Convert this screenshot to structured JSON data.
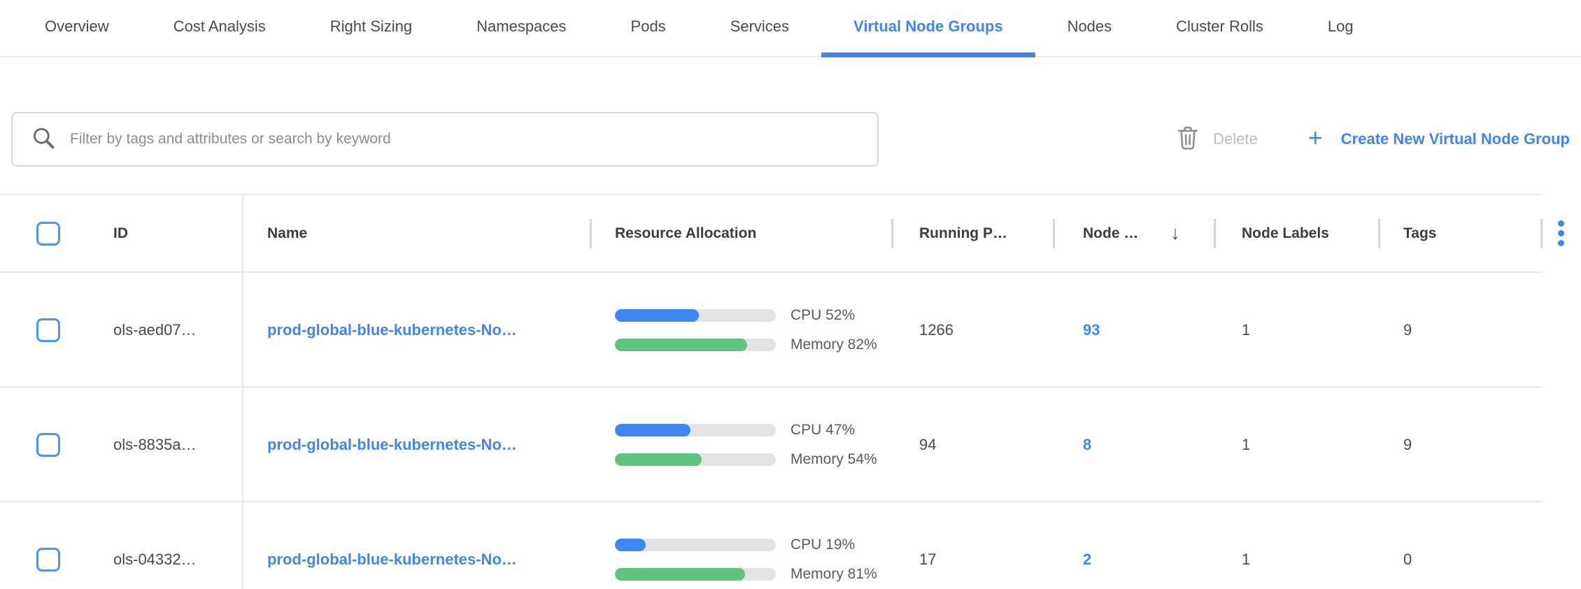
{
  "tabs": {
    "items": [
      {
        "label": "Overview",
        "active": false
      },
      {
        "label": "Cost Analysis",
        "active": false
      },
      {
        "label": "Right Sizing",
        "active": false
      },
      {
        "label": "Namespaces",
        "active": false
      },
      {
        "label": "Pods",
        "active": false
      },
      {
        "label": "Services",
        "active": false
      },
      {
        "label": "Virtual Node Groups",
        "active": true
      },
      {
        "label": "Nodes",
        "active": false
      },
      {
        "label": "Cluster Rolls",
        "active": false
      },
      {
        "label": "Log",
        "active": false
      }
    ]
  },
  "toolbar": {
    "search_placeholder": "Filter by tags and attributes or search by keyword",
    "search_value": "",
    "delete_label": "Delete",
    "plus_glyph": "+",
    "create_label": "Create New Virtual Node Group"
  },
  "table": {
    "columns": [
      {
        "label": "ID"
      },
      {
        "label": "Name"
      },
      {
        "label": "Resource Allocation"
      },
      {
        "label": "Running P…"
      },
      {
        "label": "Node …",
        "sort": "desc",
        "sort_glyph": "↓"
      },
      {
        "label": "Node Labels"
      },
      {
        "label": "Tags"
      }
    ],
    "rows": [
      {
        "id": "ols-aed07…",
        "name": "prod-global-blue-kubernetes-No…",
        "cpu_pct": 52,
        "memory_pct": 82,
        "cpu_label": "CPU 52%",
        "memory_label": "Memory 82%",
        "running_pods": "1266",
        "nodes": "93",
        "node_labels": "1",
        "tags": "9"
      },
      {
        "id": "ols-8835a…",
        "name": "prod-global-blue-kubernetes-No…",
        "cpu_pct": 47,
        "memory_pct": 54,
        "cpu_label": "CPU 47%",
        "memory_label": "Memory 54%",
        "running_pods": "94",
        "nodes": "8",
        "node_labels": "1",
        "tags": "9"
      },
      {
        "id": "ols-04332…",
        "name": "prod-global-blue-kubernetes-No…",
        "cpu_pct": 19,
        "memory_pct": 81,
        "cpu_label": "CPU 19%",
        "memory_label": "Memory 81%",
        "running_pods": "17",
        "nodes": "2",
        "node_labels": "1",
        "tags": "0"
      }
    ]
  },
  "colors": {
    "accent_blue": "#3e87f3",
    "bar_blue": "#3d87f5",
    "bar_green": "#5ec47e",
    "bar_track": "#e3e3e3",
    "disabled_gray": "#bdbdbd",
    "border_gray": "#e9e9e9"
  }
}
